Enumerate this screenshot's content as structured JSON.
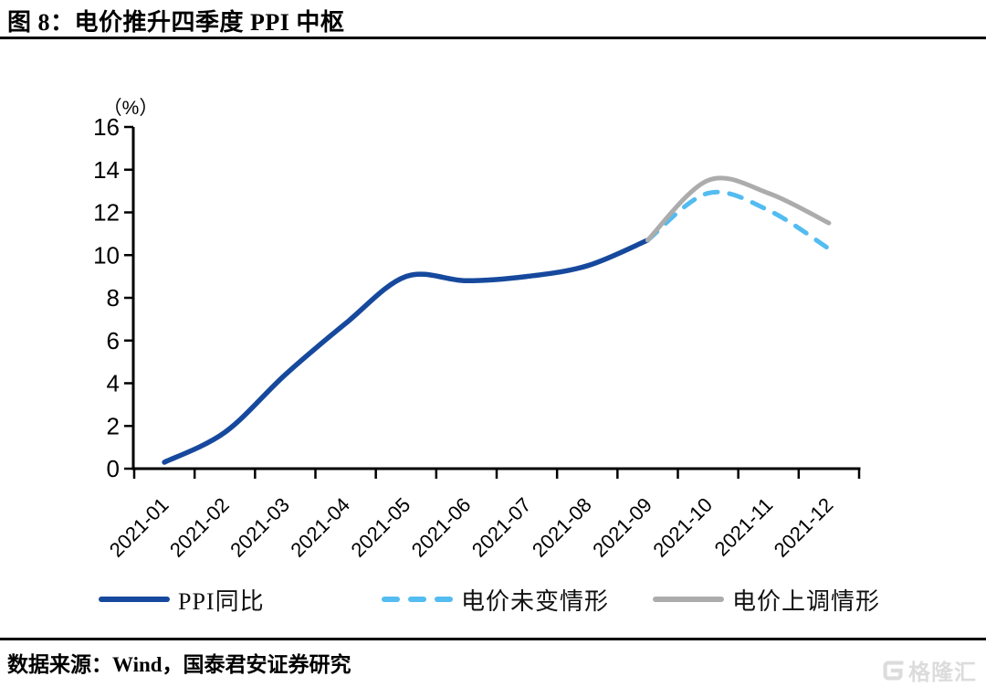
{
  "header": {
    "title": "图 8：电价推升四季度 PPI 中枢"
  },
  "footer": {
    "source": "数据来源：Wind，国泰君安证券研究",
    "watermark_text": "格隆汇"
  },
  "colors": {
    "ppi_blue": "#16499D",
    "scenario_light_blue": "#53BCF1",
    "scenario_gray": "#ACACAC",
    "axis_black": "#000000",
    "watermark_gray": "#DCDCDC"
  },
  "chart_data": {
    "type": "line",
    "title": "电价推升四季度 PPI 中枢",
    "unit_label": "（%）",
    "xlabel": "",
    "ylabel": "（%）",
    "categories": [
      "2021-01",
      "2021-02",
      "2021-03",
      "2021-04",
      "2021-05",
      "2021-06",
      "2021-07",
      "2021-08",
      "2021-09",
      "2021-10",
      "2021-11",
      "2021-12"
    ],
    "ylim": [
      0,
      16
    ],
    "ytick_step": 2,
    "grid": false,
    "legend_position": "bottom",
    "series": [
      {
        "name": "PPI同比",
        "color": "#16499D",
        "style": "solid",
        "start_index": 0,
        "values": [
          0.3,
          1.7,
          4.4,
          6.8,
          9.0,
          8.8,
          9.0,
          9.5,
          10.7
        ]
      },
      {
        "name": "电价未变情形",
        "color": "#53BCF1",
        "style": "dashed",
        "start_index": 8,
        "values": [
          10.7,
          12.9,
          12.1,
          10.3
        ]
      },
      {
        "name": "电价上调情形",
        "color": "#ACACAC",
        "style": "solid",
        "start_index": 8,
        "values": [
          10.7,
          13.5,
          12.9,
          11.5
        ]
      }
    ]
  }
}
